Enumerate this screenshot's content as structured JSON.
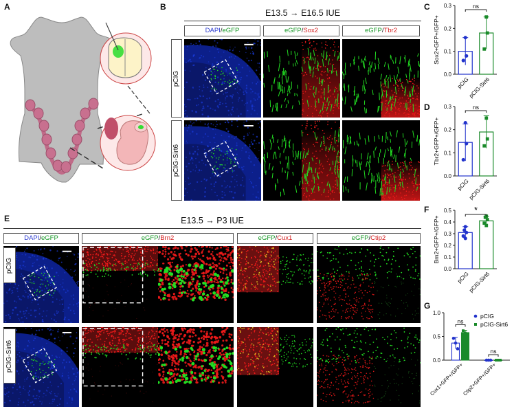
{
  "panels": {
    "A": "A",
    "B": "B",
    "C": "C",
    "D": "D",
    "E": "E",
    "F": "F",
    "G": "G"
  },
  "panel_b": {
    "title": "E13.5 → E16.5 IUE",
    "columns": [
      {
        "a": "DAPI",
        "sep": "/",
        "b": "eGFP"
      },
      {
        "a": "eGFP",
        "sep": "/",
        "b": "Sox2"
      },
      {
        "a": "eGFP",
        "sep": "/",
        "b": "Tbr2"
      }
    ],
    "rows": [
      "pCIG",
      "pCIG-Sirt6"
    ]
  },
  "panel_e": {
    "title": "E13.5 → P3 IUE",
    "columns": [
      {
        "a": "DAPI",
        "sep": "/",
        "b": "eGFP"
      },
      {
        "a": "eGFP",
        "sep": "/",
        "b": "Brn2"
      },
      {
        "a": "eGFP",
        "sep": "/",
        "b": "Cux1"
      },
      {
        "a": "eGFP",
        "sep": "/",
        "b": "Ctip2"
      }
    ],
    "rows": [
      "pCIG",
      "pCIG-Sirt6"
    ]
  },
  "colors": {
    "pcig": "#2233cc",
    "sirt6": "#1a8a2a",
    "gfp": "#22dd22",
    "red": "#ee1a1a",
    "dapi": "#1a3ad8"
  },
  "chart_data": [
    {
      "panel": "C",
      "type": "bar",
      "categories": [
        "pCIG",
        "pCIG-Sirt6"
      ],
      "values": [
        0.1,
        0.18
      ],
      "errors": [
        0.06,
        0.07
      ],
      "points": [
        [
          0.16,
          0.08,
          0.06
        ],
        [
          0.25,
          0.18,
          0.11
        ]
      ],
      "ylabel": "Sox2+GFP+/GFP+",
      "ylim": [
        0,
        0.3
      ],
      "yticks": [
        "0.0",
        "0.1",
        "0.2",
        "0.3"
      ],
      "annotations": [
        {
          "text": "ns"
        }
      ]
    },
    {
      "panel": "D",
      "type": "bar",
      "categories": [
        "pCIG",
        "pCIG-Sirt6"
      ],
      "values": [
        0.145,
        0.19
      ],
      "errors": [
        0.08,
        0.07
      ],
      "points": [
        [
          0.23,
          0.14,
          0.07
        ],
        [
          0.25,
          0.16,
          0.13
        ]
      ],
      "ylabel": "Tbr2+GFP+/GFP+",
      "ylim": [
        0,
        0.3
      ],
      "yticks": [
        "0.0",
        "0.1",
        "0.2",
        "0.3"
      ],
      "annotations": [
        {
          "text": "ns"
        }
      ]
    },
    {
      "panel": "F",
      "type": "bar",
      "categories": [
        "pCIG",
        "pCIG-Sirt6"
      ],
      "values": [
        0.31,
        0.41
      ],
      "errors": [
        0.05,
        0.04
      ],
      "points": [
        [
          0.36,
          0.31,
          0.28,
          0.26,
          0.33
        ],
        [
          0.45,
          0.42,
          0.39,
          0.37,
          0.44
        ]
      ],
      "ylabel": "Brn2+GFP+/GFP+",
      "ylim": [
        0,
        0.5
      ],
      "yticks": [
        "0.0",
        "0.1",
        "0.2",
        "0.3",
        "0.4",
        "0.5"
      ],
      "annotations": [
        {
          "text": "*"
        }
      ]
    },
    {
      "panel": "G",
      "type": "bar",
      "categories": [
        "Cux1+GFP+/GFP+",
        "Ctip2+GFP+/GFP+"
      ],
      "series": [
        {
          "name": "pCIG",
          "values": [
            0.36,
            0.0
          ],
          "errors": [
            0.12,
            0.0
          ],
          "points": [
            [
              0.46,
              0.36,
              0.24
            ],
            [
              0,
              0,
              0
            ]
          ]
        },
        {
          "name": "pCIG-Sirt6",
          "values": [
            0.58,
            0.0
          ],
          "errors": [
            0.05,
            0.0
          ],
          "points": [
            [
              0.62,
              0.57,
              0.55
            ],
            [
              0,
              0,
              0
            ]
          ]
        }
      ],
      "ylabel": "",
      "ylim": [
        0,
        1.0
      ],
      "yticks": [
        "0.0",
        "0.5",
        "1.0"
      ],
      "annotations": [
        {
          "text": "ns"
        },
        {
          "text": "ns"
        }
      ],
      "legend": "top-right"
    }
  ]
}
